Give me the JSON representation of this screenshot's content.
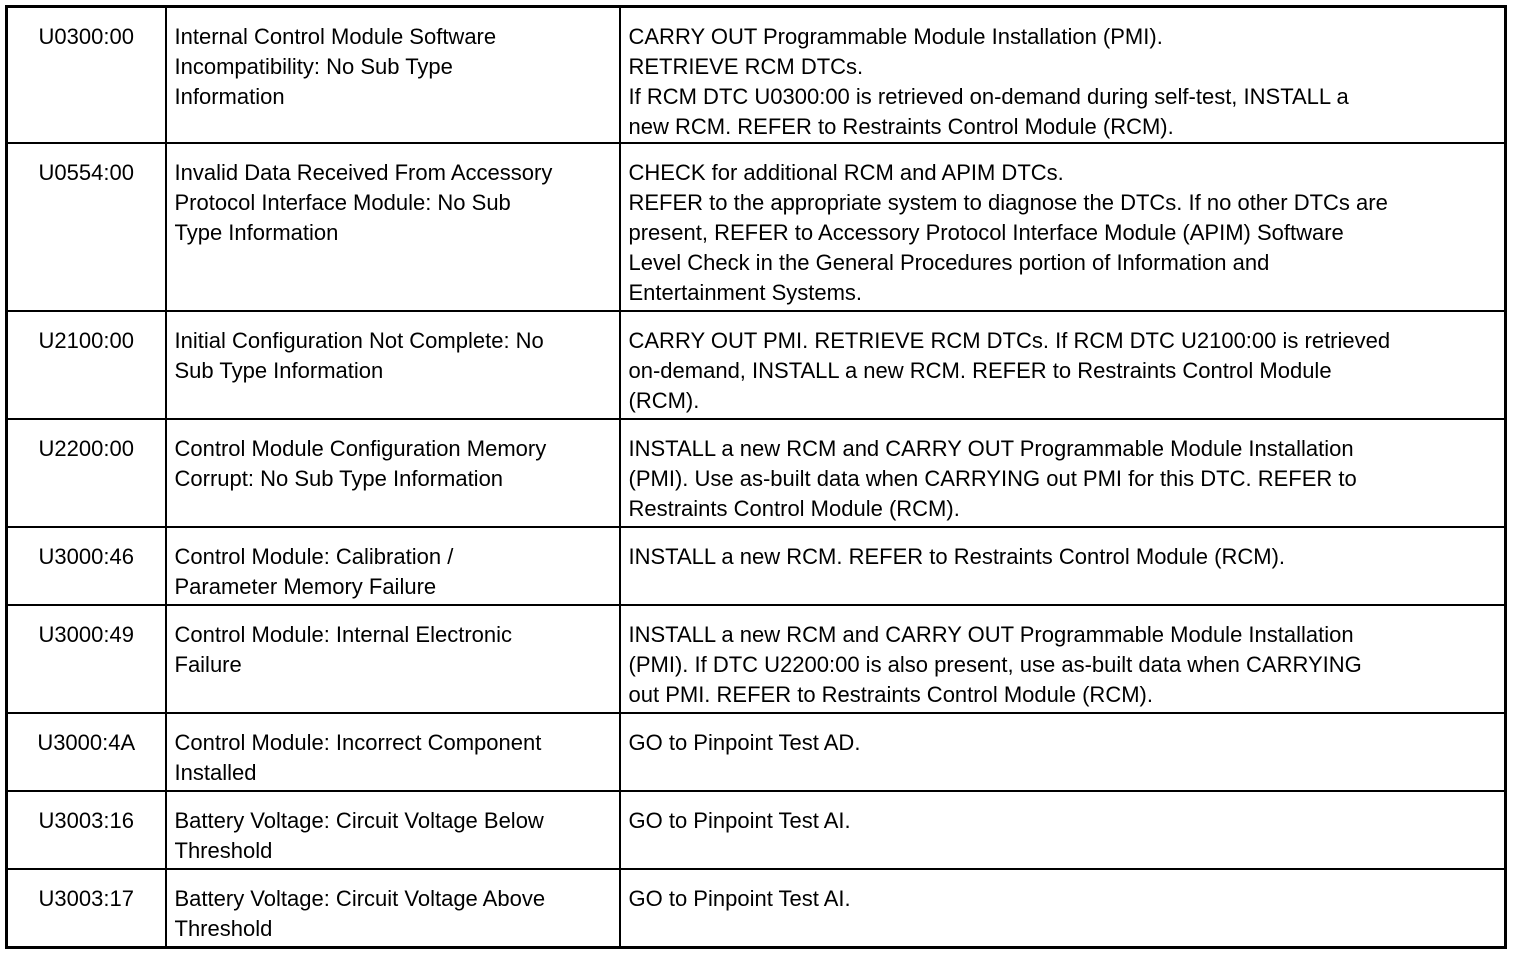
{
  "rows": [
    {
      "code": "U0300:00",
      "description": [
        "Internal Control Module Software",
        "Incompatibility: No Sub Type",
        "Information"
      ],
      "action": [
        "CARRY OUT Programmable Module Installation (PMI).",
        "RETRIEVE RCM DTCs.",
        "If RCM DTC U0300:00 is retrieved on-demand during self-test, INSTALL a",
        "new RCM. REFER to Restraints Control Module (RCM)."
      ]
    },
    {
      "code": "U0554:00",
      "description": [
        "Invalid Data Received From Accessory",
        "Protocol Interface Module: No Sub",
        "Type Information"
      ],
      "action": [
        "CHECK for additional RCM and APIM DTCs.",
        "REFER to the appropriate system to diagnose the DTCs. If no other DTCs are",
        "present, REFER to Accessory Protocol Interface Module (APIM) Software",
        "Level Check in the General Procedures portion of Information and",
        "Entertainment Systems."
      ]
    },
    {
      "code": "U2100:00",
      "description": [
        "Initial Configuration Not Complete: No",
        "Sub Type Information"
      ],
      "action": [
        "CARRY OUT PMI. RETRIEVE RCM DTCs. If RCM DTC U2100:00 is retrieved",
        "on-demand, INSTALL a new RCM. REFER to Restraints Control Module",
        "(RCM)."
      ]
    },
    {
      "code": "U2200:00",
      "description": [
        "Control Module Configuration Memory",
        "Corrupt: No Sub Type Information"
      ],
      "action": [
        "INSTALL a new RCM and CARRY OUT Programmable Module Installation",
        "(PMI). Use as-built data when CARRYING out PMI for this DTC. REFER to",
        "Restraints Control Module (RCM)."
      ]
    },
    {
      "code": "U3000:46",
      "description": [
        "Control Module: Calibration /",
        "Parameter Memory Failure"
      ],
      "action": [
        "INSTALL a new RCM. REFER to Restraints Control Module (RCM)."
      ]
    },
    {
      "code": "U3000:49",
      "description": [
        "Control Module: Internal Electronic",
        "Failure"
      ],
      "action": [
        "INSTALL a new RCM and CARRY OUT Programmable Module Installation",
        "(PMI). If DTC U2200:00 is also present, use as-built data when CARRYING",
        "out PMI. REFER to Restraints Control Module (RCM)."
      ]
    },
    {
      "code": "U3000:4A",
      "description": [
        "Control Module: Incorrect Component",
        "Installed"
      ],
      "action": [
        "GO to Pinpoint Test AD."
      ]
    },
    {
      "code": "U3003:16",
      "description": [
        "Battery Voltage: Circuit Voltage Below",
        "Threshold"
      ],
      "action": [
        "GO to Pinpoint Test AI."
      ]
    },
    {
      "code": "U3003:17",
      "description": [
        "Battery Voltage: Circuit Voltage Above",
        "Threshold"
      ],
      "action": [
        "GO to Pinpoint Test AI."
      ]
    }
  ]
}
